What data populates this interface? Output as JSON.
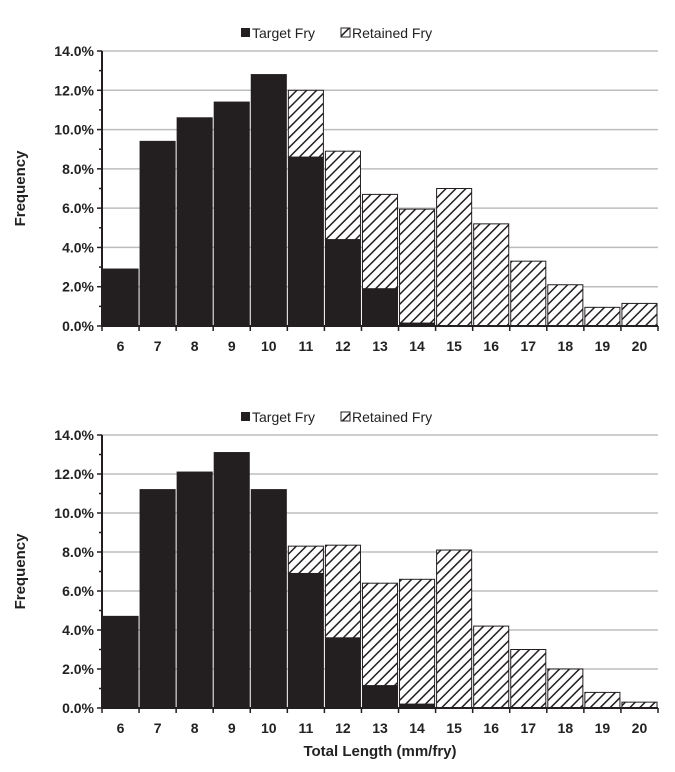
{
  "chart_data": [
    {
      "type": "bar",
      "stacked": true,
      "title": "",
      "xlabel": "",
      "ylabel": "Frequency",
      "ylim": [
        0,
        14
      ],
      "yticks": [
        "0.0%",
        "2.0%",
        "4.0%",
        "6.0%",
        "8.0%",
        "10.0%",
        "12.0%",
        "14.0%"
      ],
      "grid": true,
      "legend_position": "top-center",
      "categories": [
        "6",
        "7",
        "8",
        "9",
        "10",
        "11",
        "12",
        "13",
        "14",
        "15",
        "16",
        "17",
        "18",
        "19",
        "20"
      ],
      "series": [
        {
          "name": "Target Fry",
          "color": "#231f20",
          "values": [
            2.9,
            9.4,
            10.6,
            11.4,
            12.8,
            8.6,
            4.4,
            1.9,
            0.15,
            0,
            0,
            0,
            0,
            0,
            0
          ]
        },
        {
          "name": "Retained Fry",
          "pattern": "hatch",
          "values": [
            0,
            0,
            0,
            0,
            0,
            3.4,
            4.5,
            4.8,
            5.8,
            7.0,
            5.2,
            3.3,
            2.1,
            0.95,
            1.15
          ]
        }
      ]
    },
    {
      "type": "bar",
      "stacked": true,
      "title": "",
      "xlabel": "Total Length (mm/fry)",
      "ylabel": "Frequency",
      "ylim": [
        0,
        14
      ],
      "yticks": [
        "0.0%",
        "2.0%",
        "4.0%",
        "6.0%",
        "8.0%",
        "10.0%",
        "12.0%",
        "14.0%"
      ],
      "grid": true,
      "legend_position": "top-center",
      "categories": [
        "6",
        "7",
        "8",
        "9",
        "10",
        "11",
        "12",
        "13",
        "14",
        "15",
        "16",
        "17",
        "18",
        "19",
        "20"
      ],
      "series": [
        {
          "name": "Target Fry",
          "color": "#231f20",
          "values": [
            4.7,
            11.2,
            12.1,
            13.1,
            11.2,
            6.9,
            3.6,
            1.15,
            0.2,
            0,
            0,
            0,
            0,
            0,
            0
          ]
        },
        {
          "name": "Retained Fry",
          "pattern": "hatch",
          "values": [
            0,
            0,
            0,
            0,
            0,
            1.4,
            4.75,
            5.25,
            6.4,
            8.1,
            4.2,
            3.0,
            2.0,
            0.8,
            0.3
          ]
        }
      ]
    }
  ]
}
